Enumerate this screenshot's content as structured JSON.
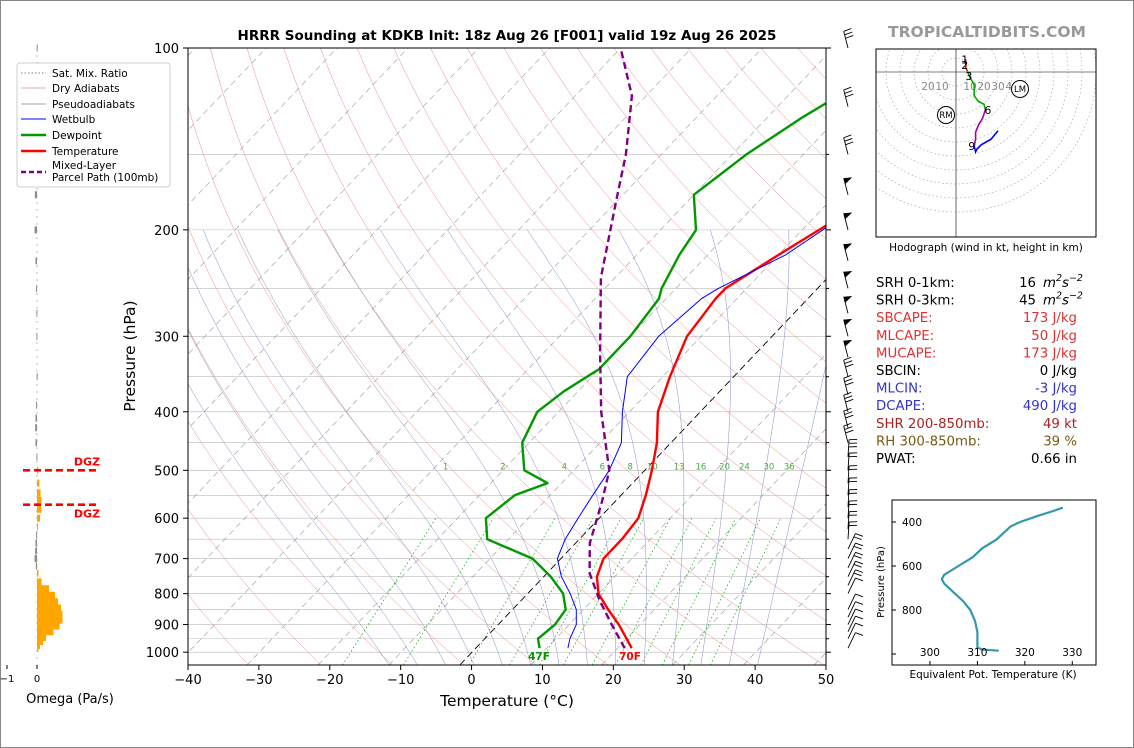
{
  "title": "HRRR Sounding at KDKB Init: 18z Aug 26 [F001] valid 19z Aug 26 2025",
  "brand": "TROPICALTIDBITS.COM",
  "colors": {
    "temperature": "#ff0000",
    "dewpoint": "#009900",
    "wetbulb": "#0000ff",
    "parcel": "#800080",
    "theta_e": "#3399aa",
    "omega": "#ffa500",
    "dgz": "#ff0000",
    "brand": "#999999"
  },
  "chart_data": [
    {
      "id": "skewt",
      "type": "line",
      "title": "HRRR Sounding at KDKB Init: 18z Aug 26 [F001] valid 19z Aug 26 2025",
      "xlabel": "Temperature (°C)",
      "ylabel": "Pressure (hPa)",
      "xlim": [
        -40,
        50
      ],
      "ylim": [
        1050,
        100
      ],
      "y_scale": "log",
      "x_ticks": [
        -40,
        -30,
        -20,
        -10,
        0,
        10,
        20,
        30,
        40,
        50
      ],
      "x_tick_labels": [
        "−40",
        "−30",
        "−20",
        "−10",
        "0",
        "10",
        "20",
        "30",
        "40",
        "50"
      ],
      "y_ticks": [
        100,
        200,
        300,
        400,
        500,
        600,
        700,
        800,
        900,
        1000
      ],
      "y_tick_labels": [
        "100",
        "200",
        "300",
        "400",
        "500",
        "600",
        "700",
        "800",
        "900",
        "1000"
      ],
      "legend": {
        "placement": "top-left",
        "entries": [
          "Sat. Mix. Ratio",
          "Dry Adiabats",
          "Pseudoadiabats",
          "Wetbulb",
          "Dewpoint",
          "Temperature",
          "Mixed-Layer\nParcel Path (100mb)"
        ]
      },
      "mixing_ratio_labels": [
        "1",
        "2",
        "4",
        "6",
        "8",
        "10",
        "13",
        "16",
        "20",
        "24",
        "30",
        "36"
      ],
      "surface_labels": {
        "dewpoint": "47F",
        "temperature": "70F"
      },
      "series": [
        {
          "name": "Temperature",
          "points": [
            [
              22,
              985
            ],
            [
              20,
              950
            ],
            [
              17,
              900
            ],
            [
              13.5,
              850
            ],
            [
              10,
              800
            ],
            [
              7.5,
              750
            ],
            [
              6,
              700
            ],
            [
              6,
              650
            ],
            [
              5.5,
              600
            ],
            [
              3.5,
              550
            ],
            [
              1,
              500
            ],
            [
              -2,
              450
            ],
            [
              -6,
              400
            ],
            [
              -9,
              350
            ],
            [
              -12,
              300
            ],
            [
              -13,
              260
            ],
            [
              -13,
              250
            ],
            [
              -10,
              220
            ],
            [
              -5,
              180
            ],
            [
              -1,
              150
            ],
            [
              0,
              140
            ],
            [
              2,
              120
            ],
            [
              4,
              100
            ]
          ]
        },
        {
          "name": "Dewpoint",
          "points": [
            [
              9,
              985
            ],
            [
              7.5,
              950
            ],
            [
              8,
              900
            ],
            [
              7.5,
              850
            ],
            [
              5,
              800
            ],
            [
              1,
              750
            ],
            [
              -4,
              700
            ],
            [
              -13,
              650
            ],
            [
              -16,
              600
            ],
            [
              -15,
              550
            ],
            [
              -12,
              525
            ],
            [
              -17,
              500
            ],
            [
              -21,
              450
            ],
            [
              -23,
              400
            ],
            [
              -22,
              370
            ],
            [
              -20,
              340
            ],
            [
              -20,
              300
            ],
            [
              -21,
              260
            ],
            [
              -22,
              250
            ],
            [
              -24,
              220
            ],
            [
              -25,
              200
            ],
            [
              -30,
              175
            ],
            [
              -28,
              150
            ],
            [
              -25,
              130
            ],
            [
              -18,
              100
            ]
          ]
        },
        {
          "name": "Wetbulb",
          "points": [
            [
              13,
              985
            ],
            [
              12,
              950
            ],
            [
              11,
              900
            ],
            [
              9,
              850
            ],
            [
              6,
              800
            ],
            [
              2.5,
              750
            ],
            [
              -0.5,
              700
            ],
            [
              -2,
              650
            ],
            [
              -3,
              600
            ],
            [
              -4,
              550
            ],
            [
              -5,
              500
            ],
            [
              -7,
              450
            ],
            [
              -11,
              400
            ],
            [
              -15,
              350
            ],
            [
              -16,
              300
            ],
            [
              -15,
              260
            ],
            [
              -14,
              250
            ],
            [
              -9,
              220
            ],
            [
              -5,
              180
            ],
            [
              -1,
              150
            ],
            [
              0,
              140
            ],
            [
              2,
              120
            ],
            [
              4,
              100
            ]
          ]
        },
        {
          "name": "Mixed-Layer Parcel Path (100mb)",
          "points": [
            [
              21,
              985
            ],
            [
              16,
              900
            ],
            [
              11,
              820
            ],
            [
              6,
              740
            ],
            [
              2,
              660
            ],
            [
              -2,
              560
            ],
            [
              -5,
              500
            ],
            [
              -14,
              400
            ],
            [
              -22,
              320
            ],
            [
              -32,
              240
            ],
            [
              -40,
              180
            ],
            [
              -45,
              150
            ],
            [
              -52,
              120
            ],
            [
              -60,
              100
            ]
          ]
        }
      ],
      "wind_barbs_pressures": [
        985,
        950,
        925,
        900,
        875,
        850,
        800,
        775,
        750,
        725,
        700,
        675,
        650,
        625,
        600,
        575,
        550,
        525,
        500,
        475,
        450,
        425,
        400,
        375,
        350,
        325,
        300,
        275,
        250,
        225,
        200,
        175,
        150,
        125,
        100
      ]
    },
    {
      "id": "hodograph",
      "type": "line",
      "title": "Hodograph (wind in kt, height in km)",
      "xlim": [
        -30,
        50
      ],
      "ylim": [
        -60,
        10
      ],
      "ring_labels": [
        "20",
        "10",
        "10",
        "20",
        "30",
        "40"
      ],
      "markers": [
        "RM",
        "LM"
      ],
      "height_labels": [
        "1",
        "2",
        "3",
        "6",
        "9"
      ],
      "series": [
        {
          "name": "0-1km",
          "color": "#ff0000",
          "points": [
            [
              7,
              9
            ],
            [
              7,
              6
            ],
            [
              7,
              3
            ],
            [
              8,
              1
            ]
          ]
        },
        {
          "name": "1-3km",
          "color": "#00aa00",
          "points": [
            [
              8,
              1
            ],
            [
              10,
              -4
            ],
            [
              13,
              -9
            ],
            [
              13,
              -17
            ],
            [
              16,
              -21
            ],
            [
              20,
              -23
            ],
            [
              21,
              -27
            ]
          ]
        },
        {
          "name": "3-6km",
          "color": "#aa00aa",
          "points": [
            [
              21,
              -27
            ],
            [
              19,
              -33
            ],
            [
              16,
              -38
            ],
            [
              14,
              -43
            ],
            [
              14,
              -48
            ],
            [
              13,
              -53
            ]
          ]
        },
        {
          "name": "6-9km",
          "color": "#0000ff",
          "points": [
            [
              13,
              -53
            ],
            [
              14,
              -57
            ],
            [
              15,
              -55
            ],
            [
              18,
              -52
            ],
            [
              25,
              -48
            ],
            [
              30,
              -42
            ]
          ]
        }
      ]
    },
    {
      "id": "omega",
      "type": "bar",
      "xlabel": "Omega (Pa/s)",
      "x_ticks": [
        0,
        -1,
        -2
      ],
      "x_tick_labels": [
        "0",
        "−1",
        "−2"
      ],
      "ylim": [
        1050,
        100
      ],
      "dgz_label": "DGZ",
      "dgz_pressures": [
        500,
        570
      ],
      "bars": [
        {
          "p": 985,
          "omega": 0.05
        },
        {
          "p": 975,
          "omega": 0.1
        },
        {
          "p": 960,
          "omega": 0.2
        },
        {
          "p": 945,
          "omega": 0.3
        },
        {
          "p": 925,
          "omega": 0.55
        },
        {
          "p": 905,
          "omega": 0.75
        },
        {
          "p": 885,
          "omega": 0.85
        },
        {
          "p": 865,
          "omega": 0.85
        },
        {
          "p": 845,
          "omega": 0.8
        },
        {
          "p": 825,
          "omega": 0.7
        },
        {
          "p": 805,
          "omega": 0.6
        },
        {
          "p": 785,
          "omega": 0.4
        },
        {
          "p": 765,
          "omega": 0.15
        },
        {
          "p": 740,
          "omega": 0.05
        },
        {
          "p": 720,
          "omega": -0.04
        },
        {
          "p": 700,
          "omega": -0.08
        },
        {
          "p": 680,
          "omega": -0.06
        },
        {
          "p": 660,
          "omega": -0.05
        },
        {
          "p": 640,
          "omega": -0.03
        },
        {
          "p": 620,
          "omega": 0.03
        },
        {
          "p": 600,
          "omega": 0.1
        },
        {
          "p": 580,
          "omega": 0.15
        },
        {
          "p": 560,
          "omega": 0.15
        },
        {
          "p": 545,
          "omega": 0.12
        },
        {
          "p": 525,
          "omega": 0.08
        },
        {
          "p": 500,
          "omega": 0.04
        },
        {
          "p": 475,
          "omega": -0.02
        },
        {
          "p": 450,
          "omega": -0.05
        },
        {
          "p": 425,
          "omega": -0.06
        },
        {
          "p": 410,
          "omega": -0.05
        },
        {
          "p": 390,
          "omega": -0.03
        },
        {
          "p": 350,
          "omega": -0.01
        },
        {
          "p": 300,
          "omega": -0.02
        },
        {
          "p": 275,
          "omega": -0.02
        },
        {
          "p": 250,
          "omega": -0.03
        },
        {
          "p": 225,
          "omega": -0.05
        },
        {
          "p": 200,
          "omega": -0.08
        },
        {
          "p": 175,
          "omega": -0.07
        },
        {
          "p": 100,
          "omega": -0.01
        }
      ]
    },
    {
      "id": "theta_e",
      "type": "line",
      "xlabel": "Equivalent Pot. Temperature (K)",
      "ylabel": "Pressure (hPa)",
      "xlim": [
        292,
        335
      ],
      "ylim": [
        1050,
        300
      ],
      "x_ticks": [
        300,
        310,
        320,
        330
      ],
      "x_tick_labels": [
        "300",
        "310",
        "320",
        "330"
      ],
      "y_ticks": [
        400,
        600,
        800,
        1000
      ],
      "y_tick_labels": [
        "400",
        "600",
        "800",
        ""
      ],
      "series": [
        {
          "name": "Equivalent Pot. Temperature",
          "points": [
            [
              314.5,
              985
            ],
            [
              311,
              980
            ],
            [
              310,
              970
            ],
            [
              310,
              900
            ],
            [
              309.5,
              850
            ],
            [
              308.5,
              800
            ],
            [
              307,
              760
            ],
            [
              305,
              720
            ],
            [
              303,
              680
            ],
            [
              302.5,
              660
            ],
            [
              303,
              640
            ],
            [
              306,
              600
            ],
            [
              309,
              560
            ],
            [
              311,
              520
            ],
            [
              314,
              480
            ],
            [
              316,
              440
            ],
            [
              317,
              420
            ],
            [
              319,
              400
            ],
            [
              323,
              370
            ],
            [
              326,
              350
            ],
            [
              328,
              335
            ]
          ]
        }
      ]
    }
  ],
  "stats": [
    {
      "label": "SRH 0-1km:",
      "value": "16",
      "unit_base": "m",
      "unit_sup": "2",
      "unit_base2": "s",
      "unit_sup2": "−2",
      "color": "#000000"
    },
    {
      "label": "SRH 0-3km:",
      "value": "45",
      "unit_base": "m",
      "unit_sup": "2",
      "unit_base2": "s",
      "unit_sup2": "−2",
      "color": "#000000"
    },
    {
      "label": "SBCAPE:",
      "value": "173 J/kg",
      "color": "#dd3333"
    },
    {
      "label": "MLCAPE:",
      "value": "50 J/kg",
      "color": "#dd3333"
    },
    {
      "label": "MUCAPE:",
      "value": "173 J/kg",
      "color": "#dd3333"
    },
    {
      "label": "SBCIN:",
      "value": "0 J/kg",
      "color": "#000000"
    },
    {
      "label": "MLCIN:",
      "value": "-3 J/kg",
      "color": "#3333cc"
    },
    {
      "label": "DCAPE:",
      "value": "490 J/kg",
      "color": "#3333cc"
    },
    {
      "label": "SHR 200-850mb:",
      "value": "49 kt",
      "color": "#aa2222"
    },
    {
      "label": "RH 300-850mb:",
      "value": "39 %",
      "color": "#7a5a10"
    },
    {
      "label": "PWAT:",
      "value": "0.66 in",
      "color": "#000000"
    }
  ]
}
